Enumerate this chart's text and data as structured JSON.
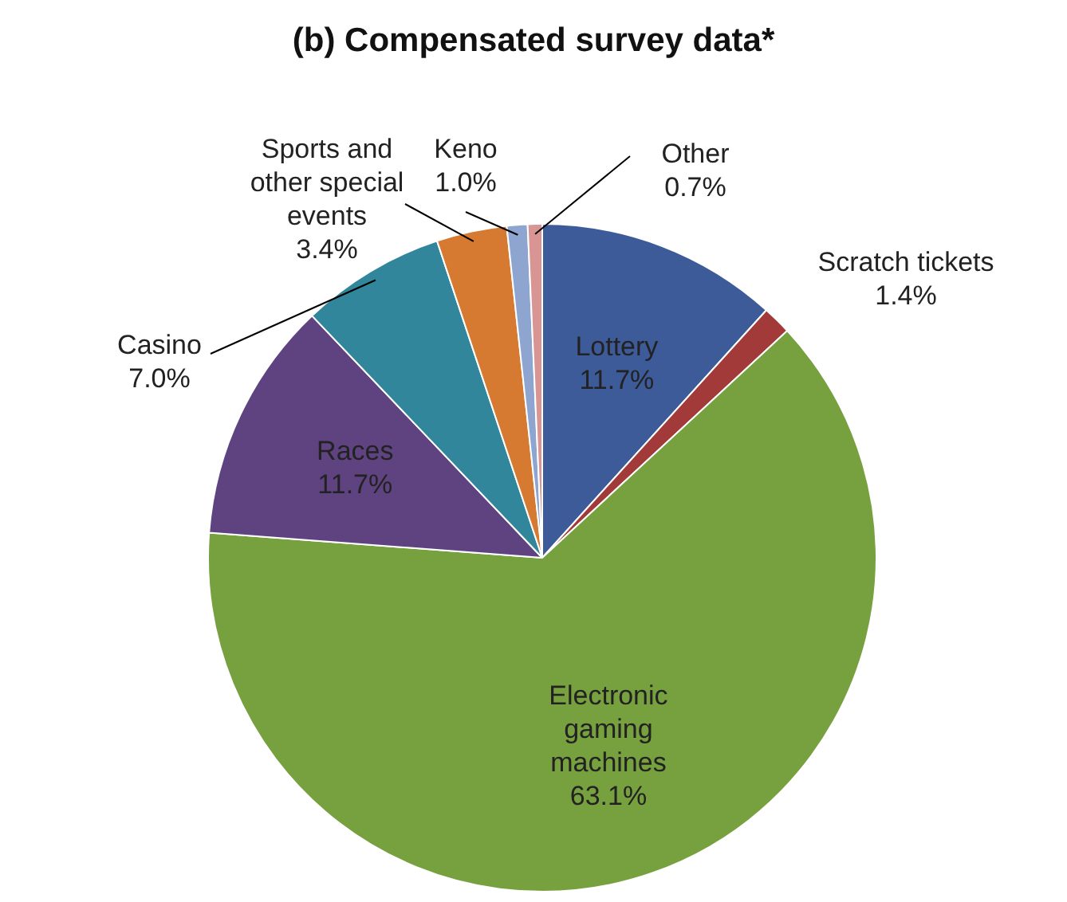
{
  "chart_data": {
    "type": "pie",
    "title": "(b) Compensated survey data*",
    "categories": [
      "Lottery",
      "Scratch tickets",
      "Electronic gaming machines",
      "Races",
      "Casino",
      "Sports and other special events",
      "Keno",
      "Other"
    ],
    "values": [
      11.7,
      1.4,
      63.1,
      11.7,
      7.0,
      3.4,
      1.0,
      0.7
    ],
    "colors": [
      "#3d5a99",
      "#a33a3a",
      "#77a03f",
      "#5e4380",
      "#31869b",
      "#d67a31",
      "#8ea5d0",
      "#d99494"
    ],
    "value_labels": [
      "11.7%",
      "1.4%",
      "63.1%",
      "11.7%",
      "7.0%",
      "3.4%",
      "1.0%",
      "0.7%"
    ],
    "legend": false
  }
}
